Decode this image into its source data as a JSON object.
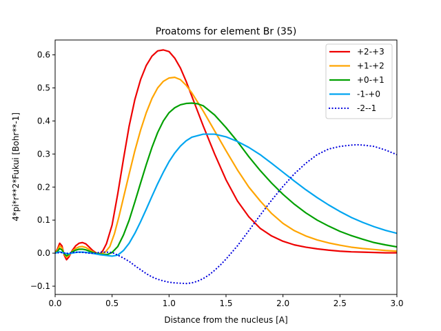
{
  "chart_data": {
    "type": "line",
    "title": "Proatoms for element Br (35)",
    "xlabel": "Distance from the nucleus [A]",
    "ylabel": "4*pi*r**2*Fukui [Bohr**-1]",
    "xlim": [
      0.0,
      3.0
    ],
    "ylim": [
      -0.125,
      0.645
    ],
    "xticks": [
      "0.0",
      "0.5",
      "1.0",
      "1.5",
      "2.0",
      "2.5",
      "3.0"
    ],
    "yticks": [
      "−0.1",
      "0.0",
      "0.1",
      "0.2",
      "0.3",
      "0.4",
      "0.5",
      "0.6"
    ],
    "grid": false,
    "legend_position": "top-right",
    "series": [
      {
        "name": "+2-+3",
        "color": "#ee0000",
        "style": "solid",
        "points": [
          [
            0,
            0
          ],
          [
            0.02,
            0.012
          ],
          [
            0.04,
            0.03
          ],
          [
            0.06,
            0.022
          ],
          [
            0.08,
            -0.006
          ],
          [
            0.1,
            -0.02
          ],
          [
            0.12,
            -0.012
          ],
          [
            0.15,
            0.008
          ],
          [
            0.18,
            0.022
          ],
          [
            0.21,
            0.03
          ],
          [
            0.24,
            0.032
          ],
          [
            0.27,
            0.028
          ],
          [
            0.3,
            0.018
          ],
          [
            0.33,
            0.008
          ],
          [
            0.36,
            0.001
          ],
          [
            0.38,
            -0.003
          ],
          [
            0.4,
            0.0
          ],
          [
            0.42,
            0.008
          ],
          [
            0.45,
            0.028
          ],
          [
            0.5,
            0.085
          ],
          [
            0.55,
            0.18
          ],
          [
            0.6,
            0.285
          ],
          [
            0.65,
            0.385
          ],
          [
            0.7,
            0.465
          ],
          [
            0.75,
            0.525
          ],
          [
            0.8,
            0.568
          ],
          [
            0.85,
            0.596
          ],
          [
            0.9,
            0.612
          ],
          [
            0.95,
            0.615
          ],
          [
            1.0,
            0.61
          ],
          [
            1.05,
            0.59
          ],
          [
            1.1,
            0.56
          ],
          [
            1.15,
            0.52
          ],
          [
            1.2,
            0.475
          ],
          [
            1.3,
            0.385
          ],
          [
            1.4,
            0.3
          ],
          [
            1.5,
            0.222
          ],
          [
            1.6,
            0.158
          ],
          [
            1.7,
            0.11
          ],
          [
            1.8,
            0.075
          ],
          [
            1.9,
            0.052
          ],
          [
            2.0,
            0.036
          ],
          [
            2.1,
            0.025
          ],
          [
            2.2,
            0.018
          ],
          [
            2.3,
            0.013
          ],
          [
            2.4,
            0.009
          ],
          [
            2.5,
            0.006
          ],
          [
            2.6,
            0.004
          ],
          [
            2.7,
            0.003
          ],
          [
            2.8,
            0.002
          ],
          [
            2.9,
            0.001
          ],
          [
            3.0,
            0.001
          ]
        ]
      },
      {
        "name": "+1-+2",
        "color": "#ffa500",
        "style": "solid",
        "points": [
          [
            0,
            0
          ],
          [
            0.02,
            0.008
          ],
          [
            0.04,
            0.022
          ],
          [
            0.06,
            0.016
          ],
          [
            0.08,
            -0.003
          ],
          [
            0.1,
            -0.012
          ],
          [
            0.12,
            -0.007
          ],
          [
            0.15,
            0.005
          ],
          [
            0.18,
            0.014
          ],
          [
            0.21,
            0.019
          ],
          [
            0.24,
            0.02
          ],
          [
            0.27,
            0.017
          ],
          [
            0.3,
            0.011
          ],
          [
            0.33,
            0.004
          ],
          [
            0.36,
            0.0
          ],
          [
            0.4,
            -0.002
          ],
          [
            0.44,
            0.003
          ],
          [
            0.48,
            0.02
          ],
          [
            0.52,
            0.058
          ],
          [
            0.56,
            0.11
          ],
          [
            0.6,
            0.168
          ],
          [
            0.65,
            0.24
          ],
          [
            0.7,
            0.31
          ],
          [
            0.75,
            0.372
          ],
          [
            0.8,
            0.425
          ],
          [
            0.85,
            0.468
          ],
          [
            0.9,
            0.5
          ],
          [
            0.95,
            0.52
          ],
          [
            1.0,
            0.53
          ],
          [
            1.05,
            0.532
          ],
          [
            1.1,
            0.525
          ],
          [
            1.15,
            0.508
          ],
          [
            1.2,
            0.485
          ],
          [
            1.3,
            0.43
          ],
          [
            1.4,
            0.37
          ],
          [
            1.5,
            0.31
          ],
          [
            1.6,
            0.252
          ],
          [
            1.7,
            0.2
          ],
          [
            1.8,
            0.158
          ],
          [
            1.9,
            0.12
          ],
          [
            2.0,
            0.09
          ],
          [
            2.1,
            0.068
          ],
          [
            2.2,
            0.052
          ],
          [
            2.3,
            0.04
          ],
          [
            2.4,
            0.031
          ],
          [
            2.5,
            0.024
          ],
          [
            2.6,
            0.018
          ],
          [
            2.7,
            0.014
          ],
          [
            2.8,
            0.011
          ],
          [
            2.9,
            0.008
          ],
          [
            3.0,
            0.006
          ]
        ]
      },
      {
        "name": "+0-+1",
        "color": "#00a000",
        "style": "solid",
        "points": [
          [
            0,
            0
          ],
          [
            0.02,
            0.005
          ],
          [
            0.04,
            0.014
          ],
          [
            0.06,
            0.01
          ],
          [
            0.08,
            -0.002
          ],
          [
            0.1,
            -0.008
          ],
          [
            0.12,
            -0.004
          ],
          [
            0.15,
            0.004
          ],
          [
            0.18,
            0.009
          ],
          [
            0.21,
            0.012
          ],
          [
            0.24,
            0.012
          ],
          [
            0.27,
            0.01
          ],
          [
            0.3,
            0.006
          ],
          [
            0.34,
            0.001
          ],
          [
            0.38,
            -0.002
          ],
          [
            0.42,
            -0.004
          ],
          [
            0.46,
            -0.004
          ],
          [
            0.5,
            0.002
          ],
          [
            0.55,
            0.02
          ],
          [
            0.6,
            0.055
          ],
          [
            0.65,
            0.1
          ],
          [
            0.7,
            0.155
          ],
          [
            0.75,
            0.212
          ],
          [
            0.8,
            0.268
          ],
          [
            0.85,
            0.32
          ],
          [
            0.9,
            0.365
          ],
          [
            0.95,
            0.4
          ],
          [
            1.0,
            0.425
          ],
          [
            1.05,
            0.44
          ],
          [
            1.1,
            0.449
          ],
          [
            1.15,
            0.453
          ],
          [
            1.2,
            0.454
          ],
          [
            1.25,
            0.452
          ],
          [
            1.3,
            0.446
          ],
          [
            1.4,
            0.418
          ],
          [
            1.5,
            0.38
          ],
          [
            1.6,
            0.338
          ],
          [
            1.7,
            0.292
          ],
          [
            1.8,
            0.25
          ],
          [
            1.9,
            0.212
          ],
          [
            2.0,
            0.178
          ],
          [
            2.1,
            0.148
          ],
          [
            2.2,
            0.122
          ],
          [
            2.3,
            0.1
          ],
          [
            2.4,
            0.082
          ],
          [
            2.5,
            0.066
          ],
          [
            2.6,
            0.053
          ],
          [
            2.7,
            0.042
          ],
          [
            2.8,
            0.032
          ],
          [
            2.9,
            0.025
          ],
          [
            3.0,
            0.019
          ]
        ]
      },
      {
        "name": "-1-+0",
        "color": "#00a5f0",
        "style": "solid",
        "points": [
          [
            0,
            0
          ],
          [
            0.04,
            0.004
          ],
          [
            0.08,
            0.0
          ],
          [
            0.12,
            -0.002
          ],
          [
            0.16,
            0.001
          ],
          [
            0.2,
            0.003
          ],
          [
            0.25,
            0.003
          ],
          [
            0.3,
            0.001
          ],
          [
            0.35,
            -0.002
          ],
          [
            0.4,
            -0.005
          ],
          [
            0.45,
            -0.007
          ],
          [
            0.5,
            -0.009
          ],
          [
            0.55,
            -0.006
          ],
          [
            0.6,
            0.008
          ],
          [
            0.65,
            0.03
          ],
          [
            0.7,
            0.06
          ],
          [
            0.75,
            0.095
          ],
          [
            0.8,
            0.133
          ],
          [
            0.85,
            0.172
          ],
          [
            0.9,
            0.21
          ],
          [
            0.95,
            0.245
          ],
          [
            1.0,
            0.277
          ],
          [
            1.05,
            0.303
          ],
          [
            1.1,
            0.324
          ],
          [
            1.15,
            0.34
          ],
          [
            1.2,
            0.351
          ],
          [
            1.3,
            0.36
          ],
          [
            1.4,
            0.36
          ],
          [
            1.5,
            0.352
          ],
          [
            1.6,
            0.338
          ],
          [
            1.7,
            0.32
          ],
          [
            1.8,
            0.298
          ],
          [
            1.9,
            0.272
          ],
          [
            2.0,
            0.245
          ],
          [
            2.1,
            0.218
          ],
          [
            2.2,
            0.192
          ],
          [
            2.3,
            0.168
          ],
          [
            2.4,
            0.146
          ],
          [
            2.5,
            0.126
          ],
          [
            2.6,
            0.108
          ],
          [
            2.7,
            0.093
          ],
          [
            2.8,
            0.08
          ],
          [
            2.9,
            0.069
          ],
          [
            3.0,
            0.06
          ]
        ]
      },
      {
        "name": "-2--1",
        "color": "#0000dd",
        "style": "dotted",
        "points": [
          [
            0,
            0
          ],
          [
            0.05,
            0.002
          ],
          [
            0.1,
            -0.001
          ],
          [
            0.15,
            0.002
          ],
          [
            0.2,
            0.003
          ],
          [
            0.25,
            0.002
          ],
          [
            0.3,
            0.0
          ],
          [
            0.35,
            0.0
          ],
          [
            0.4,
            0.003
          ],
          [
            0.45,
            0.003
          ],
          [
            0.5,
            0.002
          ],
          [
            0.55,
            -0.006
          ],
          [
            0.6,
            -0.015
          ],
          [
            0.65,
            -0.025
          ],
          [
            0.7,
            -0.038
          ],
          [
            0.75,
            -0.05
          ],
          [
            0.8,
            -0.062
          ],
          [
            0.85,
            -0.072
          ],
          [
            0.9,
            -0.079
          ],
          [
            0.95,
            -0.084
          ],
          [
            1.0,
            -0.088
          ],
          [
            1.05,
            -0.09
          ],
          [
            1.1,
            -0.091
          ],
          [
            1.15,
            -0.092
          ],
          [
            1.2,
            -0.09
          ],
          [
            1.25,
            -0.085
          ],
          [
            1.3,
            -0.077
          ],
          [
            1.35,
            -0.066
          ],
          [
            1.4,
            -0.052
          ],
          [
            1.45,
            -0.036
          ],
          [
            1.5,
            -0.018
          ],
          [
            1.6,
            0.022
          ],
          [
            1.7,
            0.068
          ],
          [
            1.8,
            0.115
          ],
          [
            1.9,
            0.16
          ],
          [
            2.0,
            0.202
          ],
          [
            2.1,
            0.24
          ],
          [
            2.2,
            0.272
          ],
          [
            2.3,
            0.298
          ],
          [
            2.4,
            0.315
          ],
          [
            2.5,
            0.323
          ],
          [
            2.6,
            0.327
          ],
          [
            2.65,
            0.328
          ],
          [
            2.7,
            0.327
          ],
          [
            2.8,
            0.323
          ],
          [
            2.9,
            0.312
          ],
          [
            3.0,
            0.298
          ]
        ]
      }
    ]
  }
}
